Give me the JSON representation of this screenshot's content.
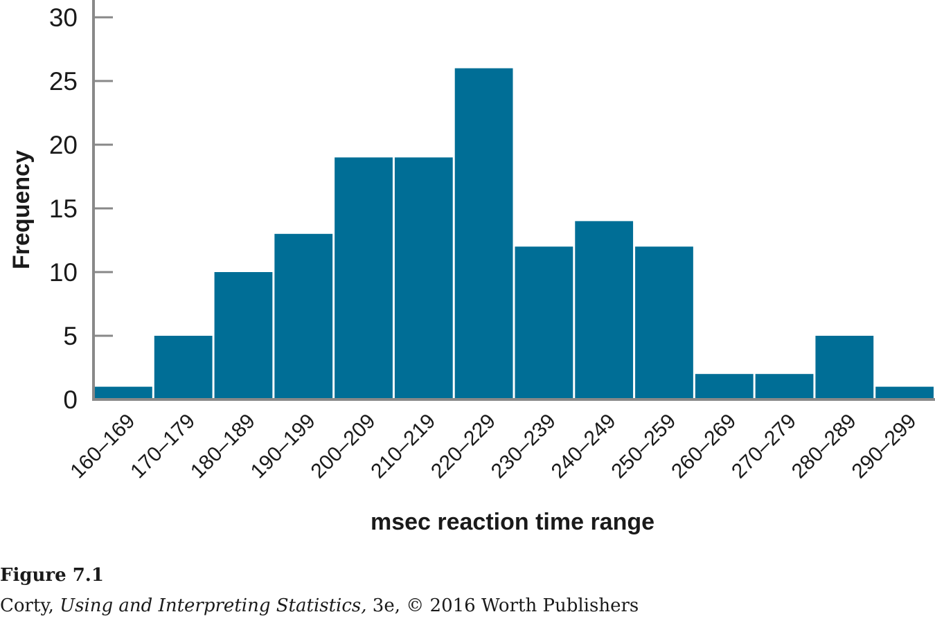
{
  "chart_data": {
    "type": "bar",
    "categories": [
      "160–169",
      "170–179",
      "180–189",
      "190–199",
      "200–209",
      "210–219",
      "220–229",
      "230–239",
      "240–249",
      "250–259",
      "260–269",
      "270–279",
      "280–289",
      "290–299"
    ],
    "values": [
      1,
      5,
      10,
      13,
      19,
      19,
      26,
      12,
      14,
      12,
      2,
      2,
      5,
      1
    ],
    "xlabel": "msec reaction time range",
    "ylabel": "Frequency",
    "ylim": [
      0,
      30
    ],
    "yticks": [
      0,
      5,
      10,
      15,
      20,
      25,
      30
    ],
    "bar_color": "#006e96",
    "grid": false
  },
  "caption": {
    "figure_number": "Figure 7.1",
    "author": "Corty,",
    "book_title": "Using and Interpreting Statistics,",
    "rest": " 3e, © 2016 Worth Publishers"
  }
}
